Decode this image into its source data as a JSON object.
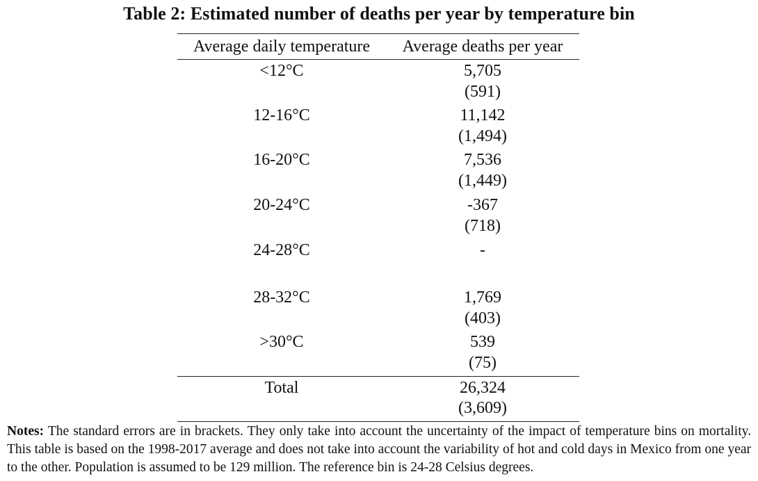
{
  "table": {
    "title": "Table 2: Estimated number of deaths per year by temperature bin",
    "headers": [
      "Average daily temperature",
      "Average deaths per year"
    ],
    "rows": [
      {
        "bin": "<12°C",
        "deaths": "5,705",
        "se": "(591)"
      },
      {
        "bin": "12-16°C",
        "deaths": "11,142",
        "se": "(1,494)"
      },
      {
        "bin": "16-20°C",
        "deaths": "7,536",
        "se": "(1,449)"
      },
      {
        "bin": "20-24°C",
        "deaths": "-367",
        "se": "(718)"
      },
      {
        "bin": "24-28°C",
        "deaths": "-",
        "se": ""
      },
      {
        "bin": "28-32°C",
        "deaths": "1,769",
        "se": "(403)"
      },
      {
        "bin": ">30°C",
        "deaths": "539",
        "se": "(75)"
      }
    ],
    "total": {
      "label": "Total",
      "deaths": "26,324",
      "se": "(3,609)"
    }
  },
  "notes": {
    "label": "Notes:",
    "text": "The standard errors are in brackets. They only take into account the uncertainty of the impact of temperature bins on mortality. This table is based on the 1998-2017 average and does not take into account the variability of hot and cold days in Mexico from one year to the other. Population is assumed to be 129 million. The reference bin is 24-28 Celsius degrees."
  }
}
